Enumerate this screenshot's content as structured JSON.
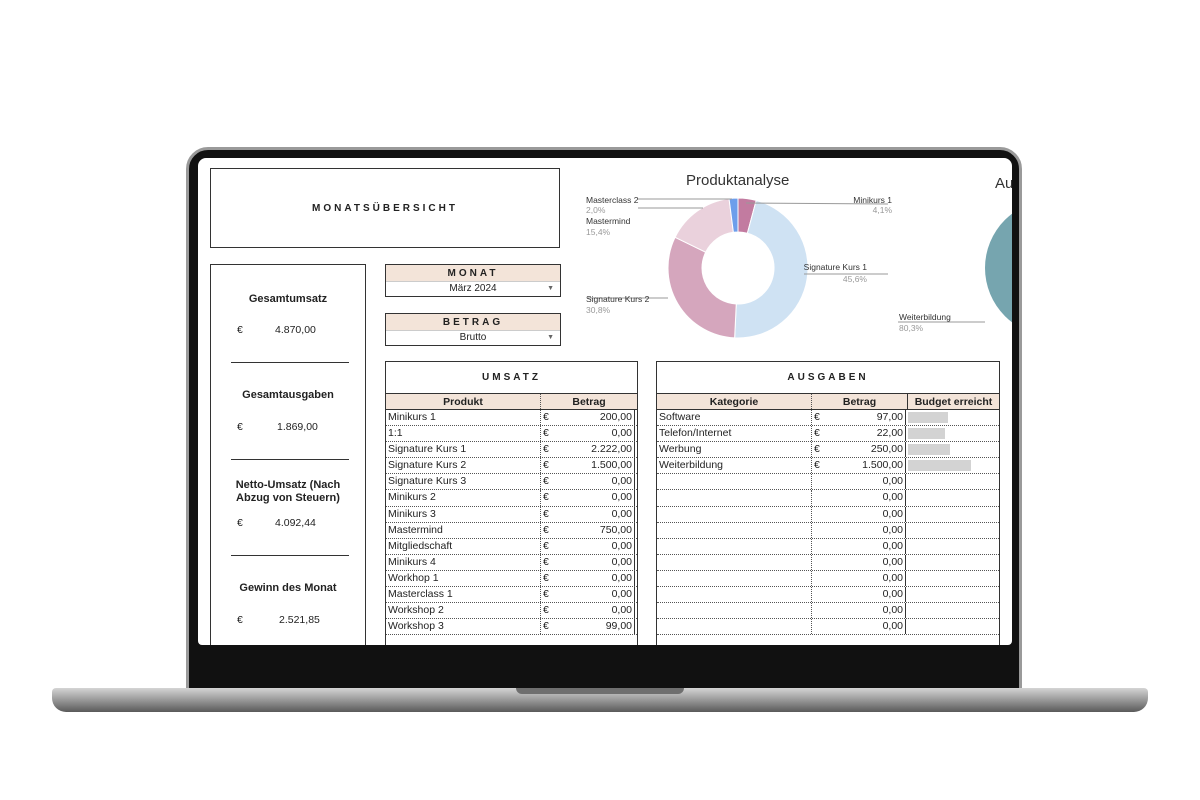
{
  "dashboard": {
    "title": "MONATSÜBERSICHT",
    "kpis": [
      {
        "label": "Gesamtumsatz",
        "currency": "€",
        "value": "4.870,00"
      },
      {
        "label": "Gesamtausgaben",
        "currency": "€",
        "value": "1.869,00"
      },
      {
        "label": "Netto-Umsatz (Nach Abzug von Steuern)",
        "currency": "€",
        "value": "4.092,44"
      },
      {
        "label": "Gewinn des Monat",
        "currency": "€",
        "value": "2.521,85"
      }
    ],
    "month_selector": {
      "label": "MONAT",
      "value": "März 2024"
    },
    "amount_selector": {
      "label": "BETRAG",
      "value": "Brutto"
    }
  },
  "umsatz": {
    "title": "UMSATZ",
    "headers": [
      "Produkt",
      "Betrag"
    ],
    "rows": [
      {
        "product": "Minikurs 1",
        "currency": "€",
        "amount": "200,00"
      },
      {
        "product": "1:1",
        "currency": "€",
        "amount": "0,00"
      },
      {
        "product": "Signature Kurs 1",
        "currency": "€",
        "amount": "2.222,00"
      },
      {
        "product": "Signature Kurs 2",
        "currency": "€",
        "amount": "1.500,00"
      },
      {
        "product": "Signature Kurs 3",
        "currency": "€",
        "amount": "0,00"
      },
      {
        "product": "Minikurs 2",
        "currency": "€",
        "amount": "0,00"
      },
      {
        "product": "Minikurs 3",
        "currency": "€",
        "amount": "0,00"
      },
      {
        "product": "Mastermind",
        "currency": "€",
        "amount": "750,00"
      },
      {
        "product": "Mitgliedschaft",
        "currency": "€",
        "amount": "0,00"
      },
      {
        "product": "Minikurs 4",
        "currency": "€",
        "amount": "0,00"
      },
      {
        "product": "Workhop 1",
        "currency": "€",
        "amount": "0,00"
      },
      {
        "product": "Masterclass 1",
        "currency": "€",
        "amount": "0,00"
      },
      {
        "product": "Workshop 2",
        "currency": "€",
        "amount": "0,00"
      },
      {
        "product": "Workshop 3",
        "currency": "€",
        "amount": "99,00"
      }
    ]
  },
  "ausgaben": {
    "title": "AUSGABEN",
    "headers": [
      "Kategorie",
      "Betrag",
      "Budget erreicht"
    ],
    "rows": [
      {
        "category": "Software",
        "currency": "€",
        "amount": "97,00",
        "budget_fraction": 0.45
      },
      {
        "category": "Telefon/Internet",
        "currency": "€",
        "amount": "22,00",
        "budget_fraction": 0.42
      },
      {
        "category": "Werbung",
        "currency": "€",
        "amount": "250,00",
        "budget_fraction": 0.48
      },
      {
        "category": "Weiterbildung",
        "currency": "€",
        "amount": "1.500,00",
        "budget_fraction": 0.72
      },
      {
        "category": "",
        "currency": "",
        "amount": "0,00",
        "budget_fraction": 0
      },
      {
        "category": "",
        "currency": "",
        "amount": "0,00",
        "budget_fraction": 0
      },
      {
        "category": "",
        "currency": "",
        "amount": "0,00",
        "budget_fraction": 0
      },
      {
        "category": "",
        "currency": "",
        "amount": "0,00",
        "budget_fraction": 0
      },
      {
        "category": "",
        "currency": "",
        "amount": "0,00",
        "budget_fraction": 0
      },
      {
        "category": "",
        "currency": "",
        "amount": "0,00",
        "budget_fraction": 0
      },
      {
        "category": "",
        "currency": "",
        "amount": "0,00",
        "budget_fraction": 0
      },
      {
        "category": "",
        "currency": "",
        "amount": "0,00",
        "budget_fraction": 0
      },
      {
        "category": "",
        "currency": "",
        "amount": "0,00",
        "budget_fraction": 0
      },
      {
        "category": "",
        "currency": "",
        "amount": "0,00",
        "budget_fraction": 0
      }
    ]
  },
  "chart_data": [
    {
      "type": "pie",
      "title": "Produktanalyse",
      "donut": true,
      "slices": [
        {
          "label": "Signature Kurs 1",
          "value": 45.6,
          "pct_label": "45,6%",
          "color": "#cfe2f3"
        },
        {
          "label": "Signature Kurs 2",
          "value": 30.8,
          "pct_label": "30,8%",
          "color": "#d5a6bd"
        },
        {
          "label": "Mastermind",
          "value": 15.4,
          "pct_label": "15,4%",
          "color": "#ead1dc"
        },
        {
          "label": "Masterclass 2",
          "value": 2.0,
          "pct_label": "2,0%",
          "color": "#6d9eeb"
        },
        {
          "label": "Minikurs 1",
          "value": 4.1,
          "pct_label": "4,1%",
          "color": "#c27ba0"
        }
      ]
    },
    {
      "type": "pie",
      "title": "Au",
      "slices": [
        {
          "label": "Weiterbildung",
          "value": 80.3,
          "pct_label": "80,3%",
          "color": "#76a5af"
        }
      ]
    }
  ]
}
